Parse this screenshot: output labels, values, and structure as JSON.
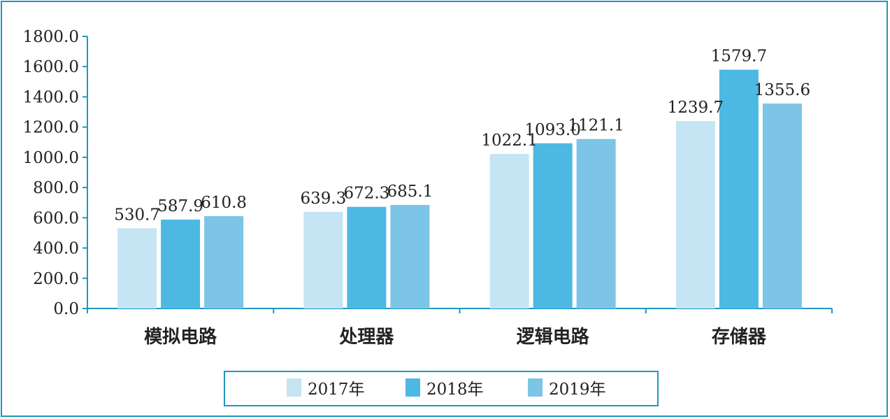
{
  "chart_data": {
    "type": "bar",
    "categories": [
      "模拟电路",
      "处理器",
      "逻辑电路",
      "存储器"
    ],
    "series": [
      {
        "name": "2017年",
        "color": "#c5e4f4",
        "values": [
          530.7,
          639.3,
          1022.1,
          1239.7
        ]
      },
      {
        "name": "2018年",
        "color": "#4db9e2",
        "values": [
          587.9,
          672.3,
          1093.0,
          1579.7
        ]
      },
      {
        "name": "2019年",
        "color": "#7cc5e6",
        "values": [
          610.8,
          685.1,
          1121.1,
          1355.6
        ]
      }
    ],
    "yticks": [
      "0.0",
      "200.0",
      "400.0",
      "600.0",
      "800.0",
      "1000.0",
      "1200.0",
      "1400.0",
      "1600.0",
      "1800.0"
    ],
    "ylim": [
      0,
      1800
    ],
    "grid": false,
    "legend_position": "bottom",
    "axis_color": "#1e97c3",
    "border_color": "#1e97c3"
  }
}
